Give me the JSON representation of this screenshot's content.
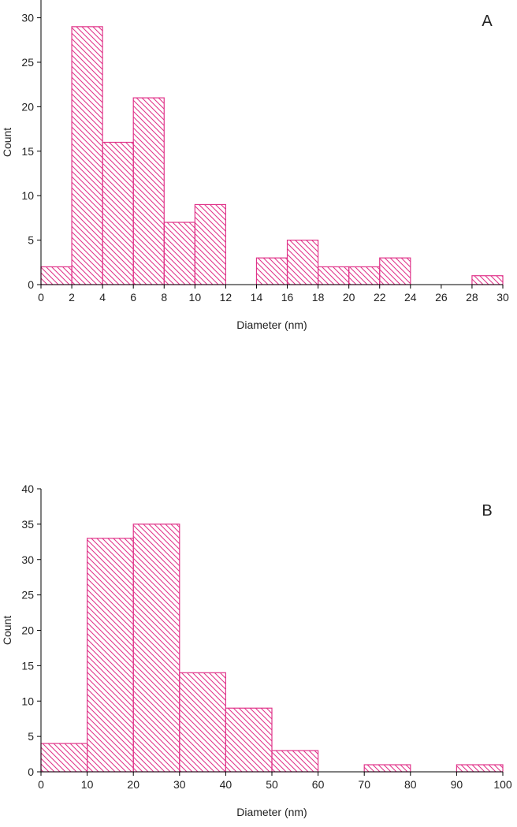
{
  "colors": {
    "bar_stroke": "#e0358a",
    "hatch": "#e0358a",
    "axis": "#000000"
  },
  "chart_data": [
    {
      "type": "bar",
      "panel_label": "A",
      "xlabel": "Diameter (nm)",
      "ylabel": "Count",
      "xlim": [
        0,
        30
      ],
      "ylim": [
        0,
        32
      ],
      "xticks": [
        0,
        2,
        4,
        6,
        8,
        10,
        12,
        14,
        16,
        18,
        20,
        22,
        24,
        26,
        28,
        30
      ],
      "yticks": [
        0,
        5,
        10,
        15,
        20,
        25,
        30
      ],
      "bins": [
        {
          "x0": 0,
          "x1": 2,
          "value": 2
        },
        {
          "x0": 2,
          "x1": 4,
          "value": 29
        },
        {
          "x0": 4,
          "x1": 6,
          "value": 16
        },
        {
          "x0": 6,
          "x1": 8,
          "value": 21
        },
        {
          "x0": 8,
          "x1": 10,
          "value": 7
        },
        {
          "x0": 10,
          "x1": 12,
          "value": 9
        },
        {
          "x0": 12,
          "x1": 14,
          "value": 0
        },
        {
          "x0": 14,
          "x1": 16,
          "value": 3
        },
        {
          "x0": 16,
          "x1": 18,
          "value": 5
        },
        {
          "x0": 18,
          "x1": 20,
          "value": 2
        },
        {
          "x0": 20,
          "x1": 22,
          "value": 2
        },
        {
          "x0": 22,
          "x1": 24,
          "value": 3
        },
        {
          "x0": 24,
          "x1": 26,
          "value": 0
        },
        {
          "x0": 26,
          "x1": 28,
          "value": 0
        },
        {
          "x0": 28,
          "x1": 30,
          "value": 1
        }
      ]
    },
    {
      "type": "bar",
      "panel_label": "B",
      "xlabel": "Diameter (nm)",
      "ylabel": "Count",
      "xlim": [
        0,
        100
      ],
      "ylim": [
        0,
        40
      ],
      "xticks": [
        0,
        10,
        20,
        30,
        40,
        50,
        60,
        70,
        80,
        90,
        100
      ],
      "yticks": [
        0,
        5,
        10,
        15,
        20,
        25,
        30,
        35,
        40
      ],
      "bins": [
        {
          "x0": 0,
          "x1": 10,
          "value": 4
        },
        {
          "x0": 10,
          "x1": 20,
          "value": 33
        },
        {
          "x0": 20,
          "x1": 30,
          "value": 35
        },
        {
          "x0": 30,
          "x1": 40,
          "value": 14
        },
        {
          "x0": 40,
          "x1": 50,
          "value": 9
        },
        {
          "x0": 50,
          "x1": 60,
          "value": 3
        },
        {
          "x0": 60,
          "x1": 70,
          "value": 0
        },
        {
          "x0": 70,
          "x1": 80,
          "value": 1
        },
        {
          "x0": 80,
          "x1": 90,
          "value": 0
        },
        {
          "x0": 90,
          "x1": 100,
          "value": 1
        }
      ]
    }
  ]
}
